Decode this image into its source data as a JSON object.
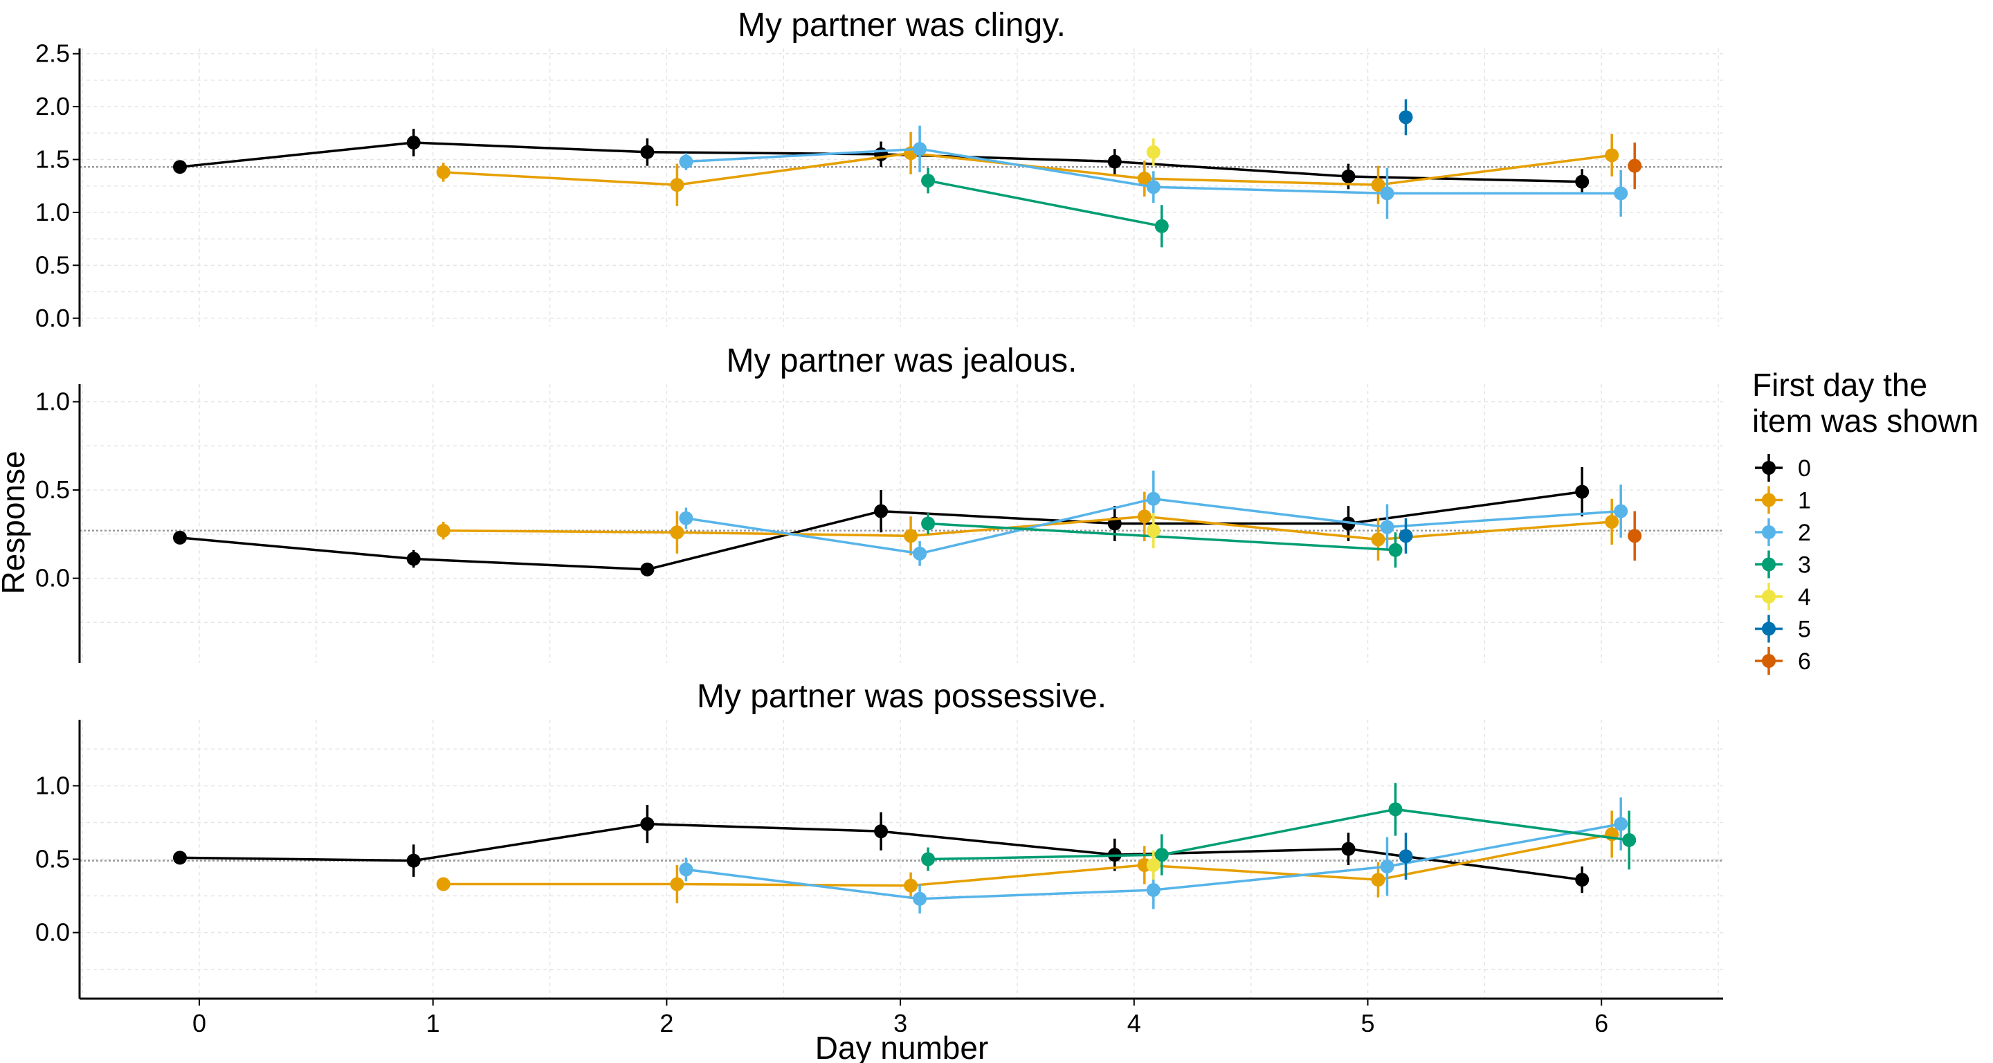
{
  "colors": {
    "0": "#000000",
    "1": "#E69F00",
    "2": "#56B4E9",
    "3": "#009E73",
    "4": "#F0E442",
    "5": "#0072B2",
    "6": "#D55E00"
  },
  "xlabel": "Day number",
  "ylabel": "Response",
  "legend": {
    "title_line1": "First day the",
    "title_line2": "item was shown",
    "entries": [
      "0",
      "1",
      "2",
      "3",
      "4",
      "5",
      "6"
    ]
  },
  "chart_data": [
    {
      "type": "line",
      "title": "My partner was clingy.",
      "ylim": [
        -0.08,
        2.55
      ],
      "yticks": [
        "0.0",
        "0.5",
        "1.0",
        "1.5",
        "2.0",
        "2.5"
      ],
      "yticks_values": [
        0,
        0.5,
        1,
        1.5,
        2,
        2.5
      ],
      "reference_line": 1.43,
      "series": [
        {
          "group": "0",
          "points": [
            {
              "x": 0,
              "y": 1.43,
              "err": 0.03
            },
            {
              "x": 1,
              "y": 1.66,
              "err": 0.13
            },
            {
              "x": 2,
              "y": 1.57,
              "err": 0.13
            },
            {
              "x": 3,
              "y": 1.55,
              "err": 0.12
            },
            {
              "x": 4,
              "y": 1.48,
              "err": 0.12
            },
            {
              "x": 5,
              "y": 1.34,
              "err": 0.12
            },
            {
              "x": 6,
              "y": 1.29,
              "err": 0.12
            }
          ]
        },
        {
          "group": "1",
          "points": [
            {
              "x": 1,
              "y": 1.38,
              "err": 0.09
            },
            {
              "x": 2,
              "y": 1.26,
              "err": 0.2
            },
            {
              "x": 3,
              "y": 1.56,
              "err": 0.2
            },
            {
              "x": 4,
              "y": 1.32,
              "err": 0.17
            },
            {
              "x": 5,
              "y": 1.26,
              "err": 0.18
            },
            {
              "x": 6,
              "y": 1.54,
              "err": 0.2
            }
          ]
        },
        {
          "group": "2",
          "points": [
            {
              "x": 2,
              "y": 1.48,
              "err": 0.08
            },
            {
              "x": 3,
              "y": 1.6,
              "err": 0.22
            },
            {
              "x": 4,
              "y": 1.24,
              "err": 0.15
            },
            {
              "x": 5,
              "y": 1.18,
              "err": 0.24
            },
            {
              "x": 6,
              "y": 1.18,
              "err": 0.22
            }
          ]
        },
        {
          "group": "3",
          "points": [
            {
              "x": 3,
              "y": 1.3,
              "err": 0.12
            },
            {
              "x": 4,
              "y": 0.87,
              "err": 0.2
            }
          ]
        },
        {
          "group": "4",
          "points": [
            {
              "x": 4,
              "y": 1.57,
              "err": 0.13
            }
          ]
        },
        {
          "group": "5",
          "points": [
            {
              "x": 5,
              "y": 1.9,
              "err": 0.17
            }
          ]
        },
        {
          "group": "6",
          "points": [
            {
              "x": 6,
              "y": 1.44,
              "err": 0.22
            }
          ]
        }
      ]
    },
    {
      "type": "line",
      "title": "My partner was jealous.",
      "ylim": [
        -0.48,
        1.1
      ],
      "yticks": [
        "0.0",
        "0.5",
        "1.0"
      ],
      "yticks_values": [
        0,
        0.5,
        1
      ],
      "reference_line": 0.27,
      "series": [
        {
          "group": "0",
          "points": [
            {
              "x": 0,
              "y": 0.23,
              "err": 0.02
            },
            {
              "x": 1,
              "y": 0.11,
              "err": 0.05
            },
            {
              "x": 2,
              "y": 0.05,
              "err": 0.03
            },
            {
              "x": 3,
              "y": 0.38,
              "err": 0.12
            },
            {
              "x": 4,
              "y": 0.31,
              "err": 0.1
            },
            {
              "x": 5,
              "y": 0.31,
              "err": 0.1
            },
            {
              "x": 6,
              "y": 0.49,
              "err": 0.14
            }
          ]
        },
        {
          "group": "1",
          "points": [
            {
              "x": 1,
              "y": 0.27,
              "err": 0.05
            },
            {
              "x": 2,
              "y": 0.26,
              "err": 0.12
            },
            {
              "x": 3,
              "y": 0.24,
              "err": 0.11
            },
            {
              "x": 4,
              "y": 0.35,
              "err": 0.14
            },
            {
              "x": 5,
              "y": 0.22,
              "err": 0.12
            },
            {
              "x": 6,
              "y": 0.32,
              "err": 0.13
            }
          ]
        },
        {
          "group": "2",
          "points": [
            {
              "x": 2,
              "y": 0.34,
              "err": 0.06
            },
            {
              "x": 3,
              "y": 0.14,
              "err": 0.07
            },
            {
              "x": 4,
              "y": 0.45,
              "err": 0.16
            },
            {
              "x": 5,
              "y": 0.29,
              "err": 0.13
            },
            {
              "x": 6,
              "y": 0.38,
              "err": 0.15
            }
          ]
        },
        {
          "group": "3",
          "points": [
            {
              "x": 3,
              "y": 0.31,
              "err": 0.06
            },
            {
              "x": 5,
              "y": 0.16,
              "err": 0.1
            }
          ]
        },
        {
          "group": "4",
          "points": [
            {
              "x": 4,
              "y": 0.27,
              "err": 0.1
            }
          ]
        },
        {
          "group": "5",
          "points": [
            {
              "x": 5,
              "y": 0.24,
              "err": 0.1
            }
          ]
        },
        {
          "group": "6",
          "points": [
            {
              "x": 6,
              "y": 0.24,
              "err": 0.14
            }
          ]
        }
      ]
    },
    {
      "type": "line",
      "title": "My partner was possessive.",
      "ylim": [
        -0.45,
        1.45
      ],
      "yticks": [
        "0.0",
        "0.5",
        "1.0"
      ],
      "yticks_values": [
        0,
        0.5,
        1
      ],
      "reference_line": 0.49,
      "series": [
        {
          "group": "0",
          "points": [
            {
              "x": 0,
              "y": 0.51,
              "err": 0.04
            },
            {
              "x": 1,
              "y": 0.49,
              "err": 0.11
            },
            {
              "x": 2,
              "y": 0.74,
              "err": 0.13
            },
            {
              "x": 3,
              "y": 0.69,
              "err": 0.13
            },
            {
              "x": 4,
              "y": 0.53,
              "err": 0.11
            },
            {
              "x": 5,
              "y": 0.57,
              "err": 0.11
            },
            {
              "x": 6,
              "y": 0.36,
              "err": 0.09
            }
          ]
        },
        {
          "group": "1",
          "points": [
            {
              "x": 1,
              "y": 0.33,
              "err": 0.04
            },
            {
              "x": 2,
              "y": 0.33,
              "err": 0.13
            },
            {
              "x": 3,
              "y": 0.32,
              "err": 0.09
            },
            {
              "x": 4,
              "y": 0.46,
              "err": 0.13
            },
            {
              "x": 5,
              "y": 0.36,
              "err": 0.12
            },
            {
              "x": 6,
              "y": 0.67,
              "err": 0.16
            }
          ]
        },
        {
          "group": "2",
          "points": [
            {
              "x": 2,
              "y": 0.43,
              "err": 0.08
            },
            {
              "x": 3,
              "y": 0.23,
              "err": 0.1
            },
            {
              "x": 4,
              "y": 0.29,
              "err": 0.13
            },
            {
              "x": 5,
              "y": 0.45,
              "err": 0.2
            },
            {
              "x": 6,
              "y": 0.74,
              "err": 0.18
            }
          ]
        },
        {
          "group": "3",
          "points": [
            {
              "x": 3,
              "y": 0.5,
              "err": 0.08
            },
            {
              "x": 4,
              "y": 0.53,
              "err": 0.14
            },
            {
              "x": 5,
              "y": 0.84,
              "err": 0.18
            },
            {
              "x": 6,
              "y": 0.63,
              "err": 0.2
            }
          ]
        },
        {
          "group": "4",
          "points": [
            {
              "x": 4,
              "y": 0.46,
              "err": 0.1
            }
          ]
        },
        {
          "group": "5",
          "points": [
            {
              "x": 5,
              "y": 0.52,
              "err": 0.16
            }
          ]
        },
        {
          "group": "6",
          "points": []
        }
      ]
    }
  ],
  "x_ticks": [
    "0",
    "1",
    "2",
    "3",
    "4",
    "5",
    "6"
  ],
  "x_ticks_values": [
    0,
    1,
    2,
    3,
    4,
    5,
    6
  ]
}
